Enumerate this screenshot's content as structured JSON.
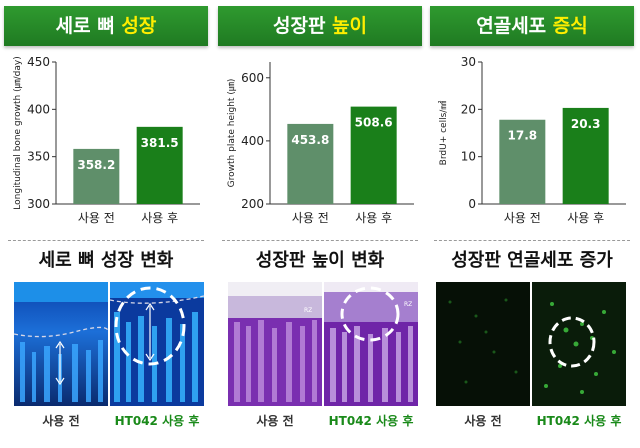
{
  "panels": [
    {
      "header_main": "세로 뼈 ",
      "header_highlight": "성장",
      "subtitle": "세로 뼈 성장 변화",
      "caption_before": "사용 전",
      "caption_after": "HT042 사용 후"
    },
    {
      "header_main": "성장판 ",
      "header_highlight": "높이",
      "subtitle": "성장판 높이 변화",
      "caption_before": "사용 전",
      "caption_after": "HT042 사용 후"
    },
    {
      "header_main": "연골세포 ",
      "header_highlight": "증식",
      "subtitle": "성장판 연골세포 증가",
      "caption_before": "사용 전",
      "caption_after": "HT042 사용 후"
    }
  ],
  "image_labels": {
    "rz": "RZ"
  },
  "colors": {
    "header": "#1f7a22",
    "highlight": "#ffee00",
    "bar_before": "#5f8f6a",
    "bar_after": "#1a7f1a"
  },
  "chart_data": [
    {
      "type": "bar",
      "categories": [
        "사용 전",
        "사용 후"
      ],
      "values": [
        358.2,
        381.5
      ],
      "value_labels": [
        "358.2",
        "381.5"
      ],
      "ylabel": "Longitudinal bone growth (㎛/day)",
      "ylim": [
        300,
        450
      ],
      "yticks": [
        300,
        350,
        400,
        450
      ]
    },
    {
      "type": "bar",
      "categories": [
        "사용 전",
        "사용 후"
      ],
      "values": [
        453.8,
        508.6
      ],
      "value_labels": [
        "453.8",
        "508.6"
      ],
      "ylabel": "Growth plate height (㎛)",
      "ylim": [
        200,
        650
      ],
      "yticks": [
        200,
        400,
        600
      ]
    },
    {
      "type": "bar",
      "categories": [
        "사용 전",
        "사용 후"
      ],
      "values": [
        17.8,
        20.3
      ],
      "value_labels": [
        "17.8",
        "20.3"
      ],
      "ylabel": "BrdU+ cells/㎟",
      "ylim": [
        0,
        30
      ],
      "yticks": [
        0,
        10,
        20,
        30
      ]
    }
  ]
}
